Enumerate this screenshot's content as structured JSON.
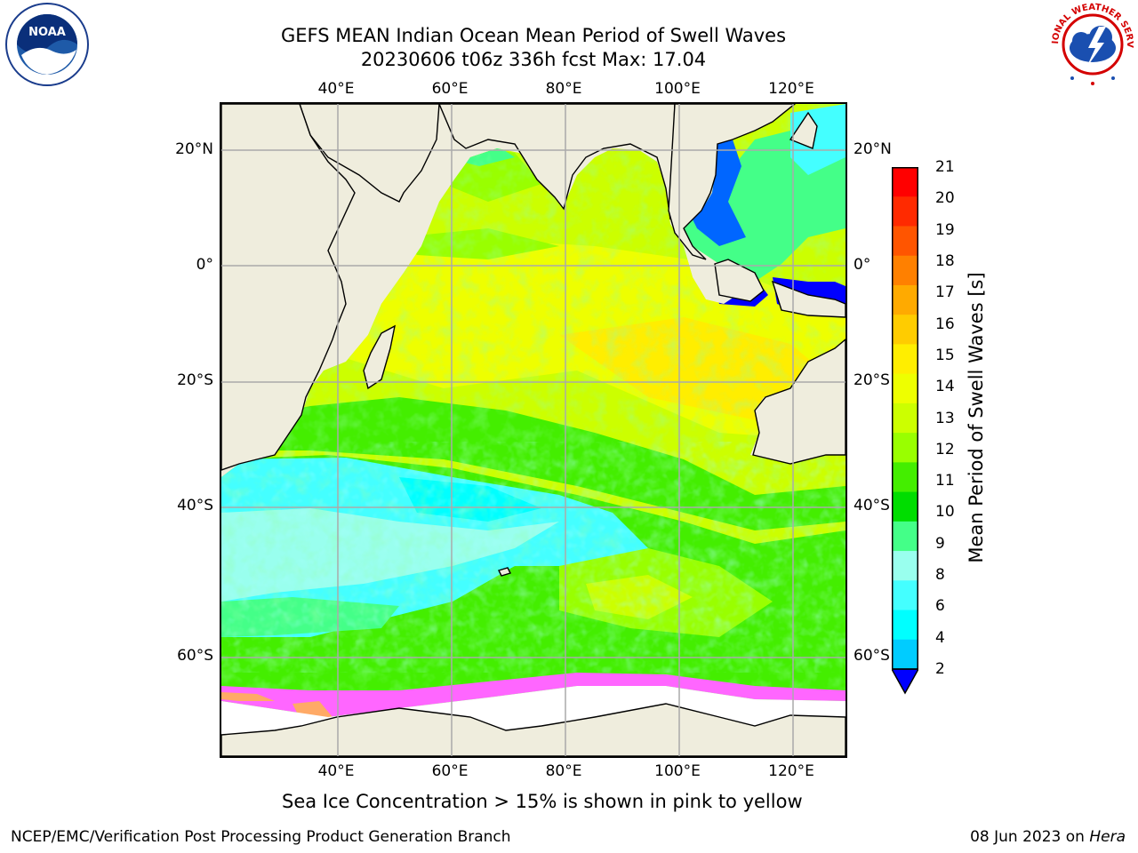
{
  "title_line1": "GEFS MEAN Indian Ocean Mean Period of Swell Waves",
  "title_line2": "20230606 t06z 336h fcst   Max: 17.04",
  "lon_ticks": [
    "40°E",
    "60°E",
    "80°E",
    "100°E",
    "120°E"
  ],
  "lat_ticks": [
    "20°N",
    "0°",
    "20°S",
    "40°S",
    "60°S"
  ],
  "colorbar": {
    "label": "Mean Period of Swell Waves [s]",
    "ticks": [
      "21",
      "20",
      "19",
      "18",
      "17",
      "16",
      "15",
      "14",
      "13",
      "12",
      "11",
      "10",
      "9",
      "8",
      "6",
      "4",
      "2"
    ],
    "colors": [
      "#ff0000",
      "#ff2a00",
      "#ff5500",
      "#ff8000",
      "#ffaa00",
      "#ffcc00",
      "#ffee00",
      "#eeff00",
      "#ccff00",
      "#99ff00",
      "#44ee00",
      "#00dd00",
      "#44ff88",
      "#99ffee",
      "#44ffff",
      "#00ffff",
      "#00ccff",
      "#0066ff"
    ],
    "extend_color": "#0000ff"
  },
  "caption": "Sea Ice Concentration > 15% is shown in pink to yellow",
  "credit": "NCEP/EMC/Verification Post Processing Product Generation Branch",
  "date_credit_prefix": "08 Jun 2023 on ",
  "date_credit_host": "Hera",
  "logos": {
    "noaa_text": "NOAA",
    "nws_text": "NATIONAL WEATHER SERVICE"
  },
  "colors": {
    "land": "#efeddd",
    "ice_free_polar": "#ffffff",
    "grid": "#aaaaaa"
  }
}
